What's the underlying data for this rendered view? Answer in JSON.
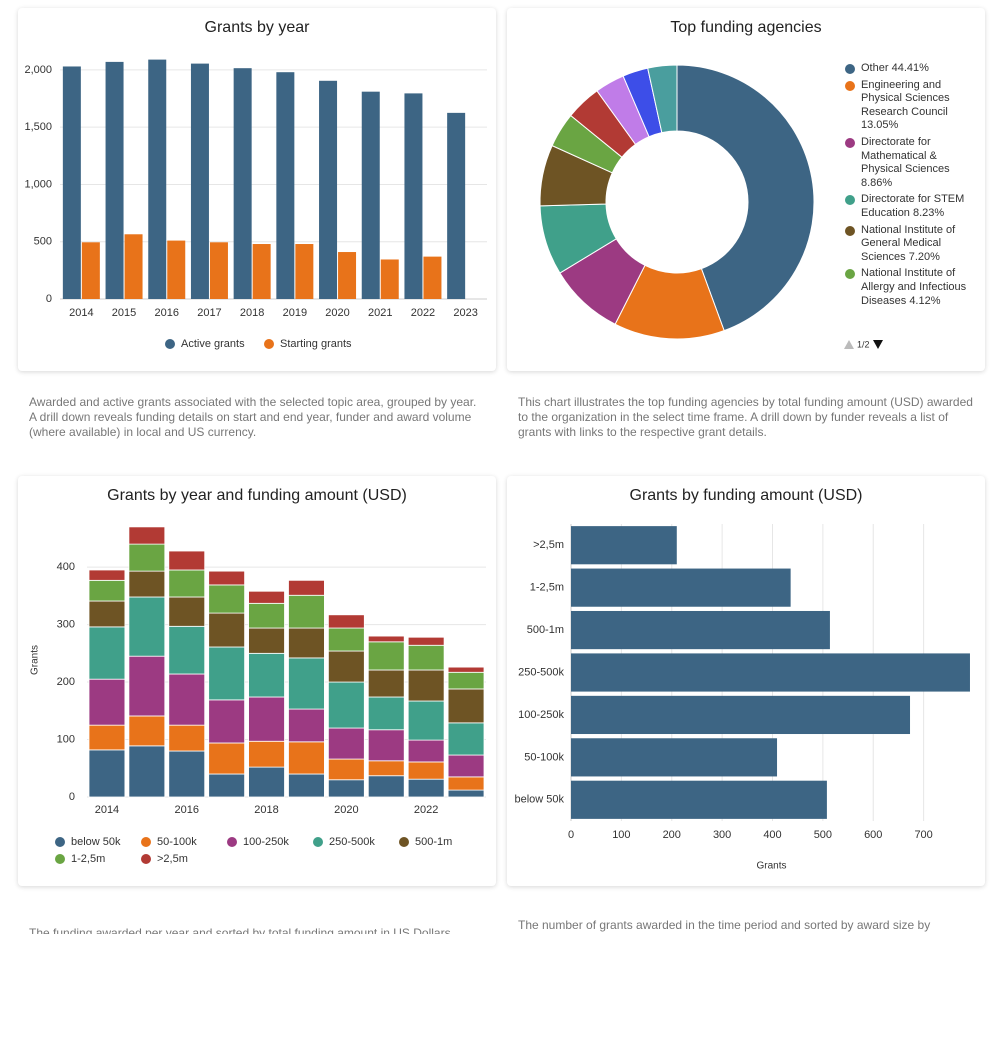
{
  "chart_data": [
    {
      "type": "bar",
      "title": "Grants by year",
      "categories": [
        "2014",
        "2015",
        "2016",
        "2017",
        "2018",
        "2019",
        "2020",
        "2021",
        "2022",
        "2023"
      ],
      "series": [
        {
          "name": "Active grants",
          "color": "#3d6584",
          "values": [
            2030,
            2070,
            2090,
            2055,
            2015,
            1980,
            1905,
            1810,
            1795,
            1625
          ]
        },
        {
          "name": "Starting grants",
          "color": "#e8731a",
          "values": [
            495,
            565,
            510,
            495,
            480,
            480,
            410,
            345,
            370,
            null
          ]
        }
      ],
      "ylim": [
        0,
        2200
      ],
      "yticks": [
        0,
        500,
        {
          "value": 1000,
          "label": "1,000"
        },
        {
          "value": 1500,
          "label": "1,500"
        },
        {
          "value": 2000,
          "label": "2,000"
        }
      ],
      "grid": true,
      "legend": "bottom"
    },
    {
      "type": "pie",
      "title": "Top funding agencies",
      "categories": [
        "Other",
        "Engineering and Physical Sciences Research Council",
        "Directorate for Mathematical & Physical Sciences",
        "Directorate for STEM Education",
        "National Institute of General Medical Sciences",
        "National Institute of Allergy and Infectious Diseases",
        null,
        null,
        null,
        null
      ],
      "values": [
        44.41,
        13.05,
        8.86,
        8.23,
        7.2,
        4.12,
        4.2,
        3.5,
        3.0,
        3.43
      ],
      "value_labels": [
        "44.41%",
        "13.05%",
        "8.86%",
        "8.23%",
        "7.20%",
        "4.12%",
        null,
        null,
        null,
        null
      ],
      "colors": [
        "#3d6584",
        "#e8731a",
        "#9c3a82",
        "#40a08a",
        "#6e5424",
        "#6aa543",
        "#b23a34",
        "#c07ce8",
        "#3d4ee8",
        "#4a9e9e"
      ],
      "legend": "right",
      "legend_page": "1/2"
    },
    {
      "type": "stacked_bar",
      "title": "Grants by year and funding amount (USD)",
      "ylabel": "Grants",
      "categories": [
        "2014",
        null,
        "2016",
        null,
        "2018",
        null,
        "2020",
        null,
        "2022",
        null
      ],
      "series": [
        {
          "name": "below 50k",
          "color": "#3d6584",
          "values": [
            82,
            89,
            80,
            40,
            52,
            40,
            30,
            37,
            31,
            12
          ]
        },
        {
          "name": "50-100k",
          "color": "#e8731a",
          "values": [
            43,
            52,
            45,
            54,
            45,
            56,
            36,
            26,
            30,
            23
          ]
        },
        {
          "name": "100-250k",
          "color": "#9c3a82",
          "values": [
            80,
            104,
            89,
            75,
            77,
            57,
            54,
            54,
            38,
            38
          ]
        },
        {
          "name": "250-500k",
          "color": "#40a08a",
          "values": [
            91,
            103,
            83,
            92,
            76,
            89,
            80,
            57,
            68,
            56
          ]
        },
        {
          "name": "500-1m",
          "color": "#6e5424",
          "values": [
            45,
            45,
            51,
            59,
            44,
            52,
            54,
            47,
            54,
            59
          ]
        },
        {
          "name": "1-2,5m",
          "color": "#6aa543",
          "values": [
            36,
            47,
            47,
            49,
            43,
            57,
            40,
            49,
            43,
            29
          ]
        },
        {
          "name": ">2,5m",
          "color": "#b23a34",
          "values": [
            18,
            30,
            33,
            24,
            21,
            26,
            23,
            10,
            14,
            9
          ]
        }
      ],
      "ylim": [
        0,
        475
      ],
      "yticks": [
        0,
        100,
        200,
        300,
        400
      ],
      "grid": true,
      "legend": "bottom"
    },
    {
      "type": "barh",
      "title": "Grants by funding amount (USD)",
      "xlabel": "Grants",
      "categories": [
        ">2,5m",
        "1-2,5m",
        "500-1m",
        "250-500k",
        "100-250k",
        "50-100k",
        "below 50k"
      ],
      "values": [
        210,
        436,
        514,
        792,
        673,
        409,
        508
      ],
      "color": "#3d6584",
      "xlim": [
        0,
        800
      ],
      "xticks": [
        0,
        100,
        200,
        300,
        400,
        500,
        600,
        700
      ],
      "grid": true
    }
  ],
  "captions": [
    "Awarded and active grants associated with the selected topic area, grouped by year. A drill down reveals funding details on start and end year, funder and award volume (where available) in local and US currency.",
    "This chart illustrates the top funding agencies by total funding amount (USD) awarded to the organization in the select time frame. A drill down by funder reveals a list of grants with links to the respective grant details.",
    "The funding awarded per year and sorted by total funding amount in US Dollars",
    "The number of grants awarded in the time period and sorted by award size by"
  ]
}
